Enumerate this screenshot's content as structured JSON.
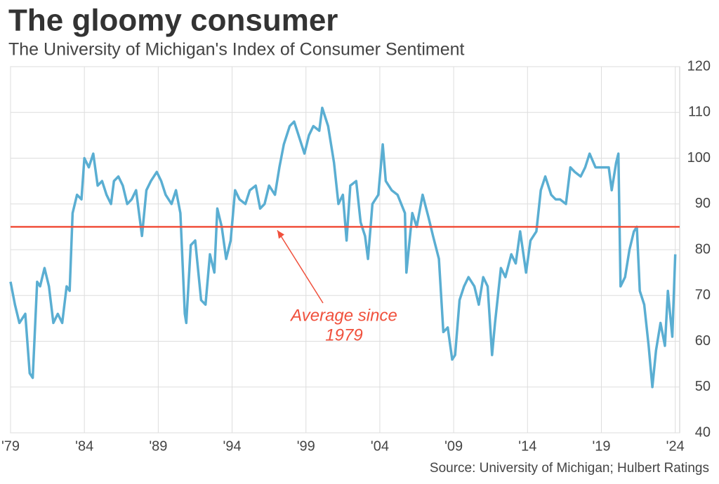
{
  "chart_data": {
    "type": "line",
    "title": "The gloomy consumer",
    "subtitle": "The University of Michigan's Index of Consumer Sentiment",
    "source": "Source: University of Michigan; Hulbert Ratings",
    "annotation": [
      "Average since",
      "1979"
    ],
    "reference_line": 85,
    "reference_color": "#f0503c",
    "color": "#5aaed2",
    "grid": true,
    "ylim": [
      40,
      120
    ],
    "yticks": [
      40,
      50,
      60,
      70,
      80,
      90,
      100,
      110,
      120
    ],
    "xlim": [
      1979,
      2024.3
    ],
    "xticks": [
      {
        "value": 1979,
        "label": "'79"
      },
      {
        "value": 1984,
        "label": "'84"
      },
      {
        "value": 1989,
        "label": "'89"
      },
      {
        "value": 1994,
        "label": "'94"
      },
      {
        "value": 1999,
        "label": "'99"
      },
      {
        "value": 2004,
        "label": "'04"
      },
      {
        "value": 2009,
        "label": "'09"
      },
      {
        "value": 2014,
        "label": "'14"
      },
      {
        "value": 2019,
        "label": "'19"
      },
      {
        "value": 2024,
        "label": "'24"
      }
    ],
    "x": [
      1979.0,
      1979.3,
      1979.6,
      1980.0,
      1980.3,
      1980.5,
      1980.8,
      1981.0,
      1981.3,
      1981.6,
      1981.9,
      1982.2,
      1982.5,
      1982.8,
      1983.0,
      1983.2,
      1983.5,
      1983.8,
      1984.0,
      1984.3,
      1984.6,
      1984.9,
      1985.2,
      1985.5,
      1985.8,
      1986.0,
      1986.3,
      1986.6,
      1986.9,
      1987.2,
      1987.5,
      1987.9,
      1988.2,
      1988.5,
      1988.9,
      1989.2,
      1989.5,
      1989.9,
      1990.2,
      1990.5,
      1990.8,
      1990.9,
      1991.2,
      1991.5,
      1991.9,
      1992.2,
      1992.5,
      1992.8,
      1993.0,
      1993.3,
      1993.6,
      1993.9,
      1994.2,
      1994.5,
      1994.9,
      1995.2,
      1995.6,
      1995.9,
      1996.2,
      1996.5,
      1996.9,
      1997.2,
      1997.5,
      1997.9,
      1998.2,
      1998.6,
      1998.9,
      1999.2,
      1999.5,
      1999.9,
      2000.1,
      2000.5,
      2000.9,
      2001.2,
      2001.5,
      2001.75,
      2002.0,
      2002.4,
      2002.7,
      2003.0,
      2003.2,
      2003.5,
      2003.9,
      2004.2,
      2004.4,
      2004.8,
      2005.2,
      2005.7,
      2005.8,
      2006.2,
      2006.5,
      2006.9,
      2007.3,
      2007.6,
      2008.0,
      2008.3,
      2008.6,
      2008.9,
      2009.1,
      2009.4,
      2009.7,
      2010.0,
      2010.4,
      2010.7,
      2011.0,
      2011.3,
      2011.6,
      2011.8,
      2012.2,
      2012.5,
      2012.9,
      2013.2,
      2013.5,
      2013.9,
      2014.2,
      2014.6,
      2014.9,
      2015.2,
      2015.6,
      2015.9,
      2016.2,
      2016.6,
      2016.9,
      2017.2,
      2017.6,
      2017.9,
      2018.2,
      2018.6,
      2018.9,
      2019.2,
      2019.5,
      2019.7,
      2020.0,
      2020.15,
      2020.3,
      2020.6,
      2020.9,
      2021.2,
      2021.4,
      2021.6,
      2021.9,
      2022.2,
      2022.45,
      2022.7,
      2023.0,
      2023.3,
      2023.5,
      2023.8,
      2024.0
    ],
    "values": [
      73,
      68,
      64,
      66,
      53,
      52,
      73,
      72,
      76,
      72,
      64,
      66,
      64,
      72,
      71,
      88,
      92,
      91,
      100,
      98,
      101,
      94,
      95,
      92,
      90,
      95,
      96,
      94,
      90,
      91,
      93,
      83,
      93,
      95,
      97,
      95,
      92,
      90,
      93,
      88,
      66,
      64,
      81,
      82,
      69,
      68,
      79,
      75,
      89,
      85,
      78,
      82,
      93,
      91,
      90,
      93,
      94,
      89,
      90,
      94,
      92,
      98,
      103,
      107,
      108,
      104,
      101,
      105,
      107,
      106,
      111,
      107,
      99,
      90,
      92,
      82,
      94,
      95,
      86,
      83,
      78,
      90,
      92,
      103,
      95,
      93,
      92,
      88,
      75,
      88,
      85,
      92,
      87,
      83,
      78,
      62,
      63,
      56,
      57,
      69,
      72,
      74,
      72,
      68,
      74,
      72,
      57,
      64,
      76,
      74,
      79,
      77,
      84,
      75,
      82,
      84,
      93,
      96,
      92,
      91,
      91,
      90,
      98,
      97,
      96,
      98,
      101,
      98,
      98,
      98,
      98,
      93,
      99,
      101,
      72,
      74,
      80,
      84,
      85,
      71,
      68,
      59,
      50,
      58,
      64,
      59,
      71,
      61,
      79
    ]
  }
}
